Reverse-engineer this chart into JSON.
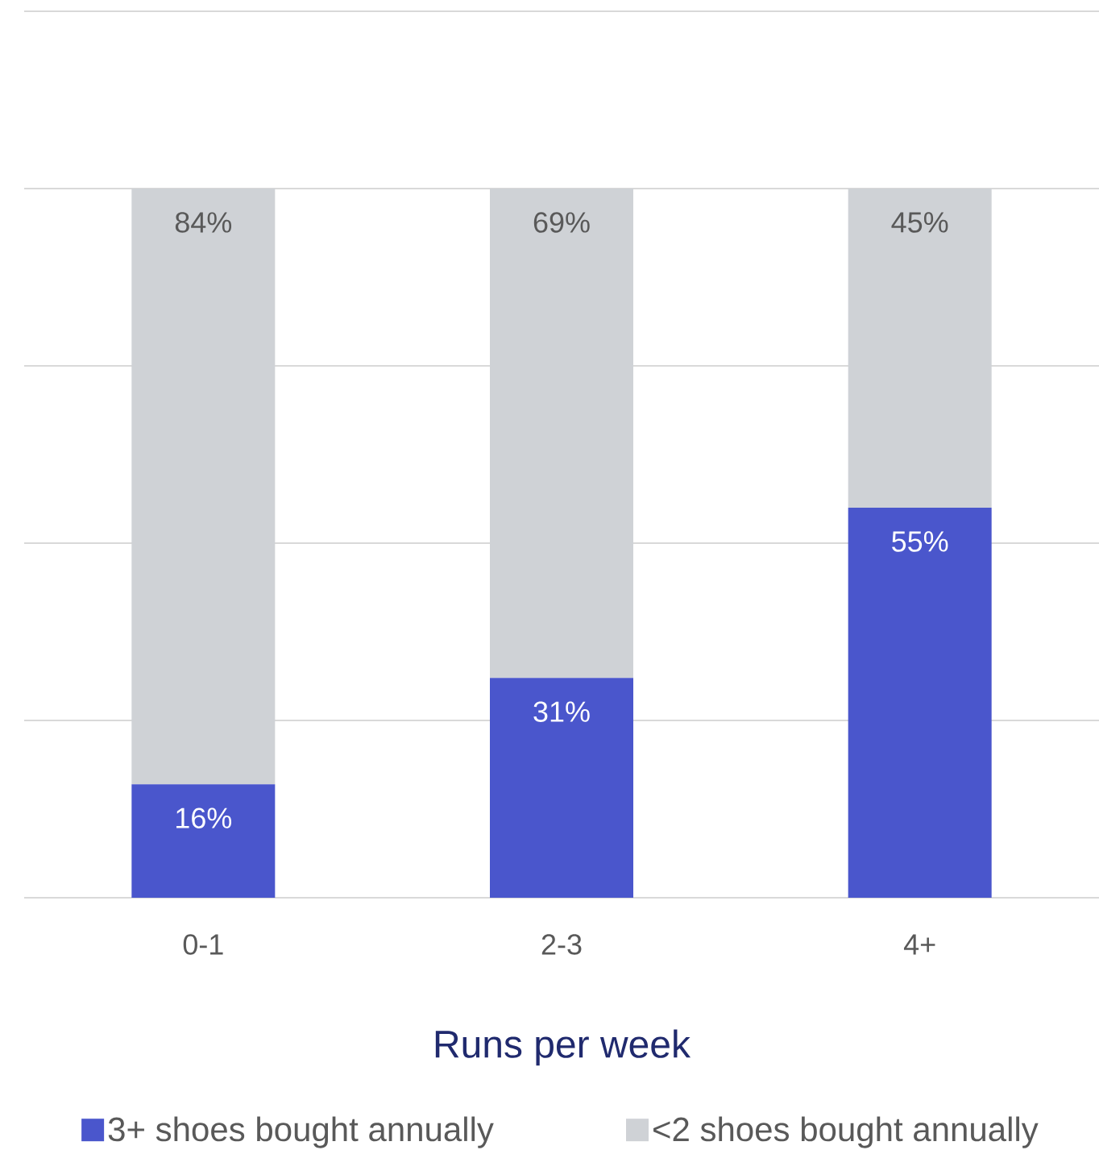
{
  "chart_data": {
    "type": "bar",
    "stacked": true,
    "xlabel": "Runs per week",
    "categories": [
      "0-1",
      "2-3",
      "4+"
    ],
    "series": [
      {
        "name": "3+ shoes bought annually",
        "color": "#4a56cc",
        "values": [
          16,
          31,
          55
        ],
        "value_labels": [
          "16%",
          "31%",
          "55%"
        ]
      },
      {
        "name": "<2 shoes bought annually",
        "color": "#cfd2d6",
        "values": [
          84,
          69,
          45
        ],
        "value_labels": [
          "84%",
          "69%",
          "45%"
        ]
      }
    ],
    "ylim": [
      0,
      125
    ],
    "yticks": [
      {
        "value": 0,
        "label": null
      },
      {
        "value": 25,
        "label": null
      },
      {
        "value": 50,
        "label": null
      },
      {
        "value": 75,
        "label": null
      },
      {
        "value": 100,
        "label": null
      },
      {
        "value": 125,
        "label": null
      }
    ],
    "tick_labels": "x",
    "grid": "y",
    "legend": "bottom"
  }
}
